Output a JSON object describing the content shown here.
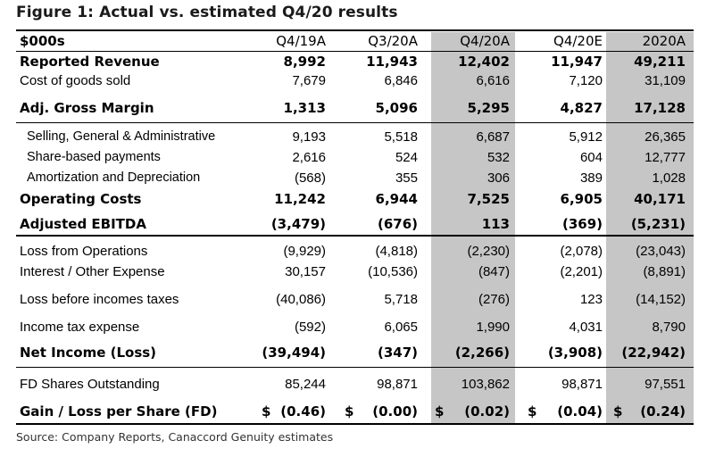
{
  "title": "Figure 1: Actual vs. estimated Q4/20 results",
  "header": {
    "label": "$000s",
    "cols": [
      "Q4/19A",
      "Q3/20A",
      "Q4/20A",
      "Q4/20E",
      "2020A"
    ]
  },
  "rows": [
    {
      "label": "Reported Revenue",
      "values": [
        "8,992",
        "11,943",
        "12,402",
        "11,947",
        "49,211"
      ]
    },
    {
      "label": "Cost of goods sold",
      "values": [
        "7,679",
        "6,846",
        "6,616",
        "7,120",
        "31,109"
      ]
    },
    {
      "label": "Adj. Gross Margin",
      "values": [
        "1,313",
        "5,096",
        "5,295",
        "4,827",
        "17,128"
      ]
    },
    {
      "label": "Selling, General & Administrative",
      "values": [
        "9,193",
        "5,518",
        "6,687",
        "5,912",
        "26,365"
      ]
    },
    {
      "label": "Share-based payments",
      "values": [
        "2,616",
        "524",
        "532",
        "604",
        "12,777"
      ]
    },
    {
      "label": "Amortization and Depreciation",
      "values": [
        "(568)",
        "355",
        "306",
        "389",
        "1,028"
      ]
    },
    {
      "label": "Operating Costs",
      "values": [
        "11,242",
        "6,944",
        "7,525",
        "6,905",
        "40,171"
      ]
    },
    {
      "label": "Adjusted EBITDA",
      "values": [
        "(3,479)",
        "(676)",
        "113",
        "(369)",
        "(5,231)"
      ]
    },
    {
      "label": "Loss from Operations",
      "values": [
        "(9,929)",
        "(4,818)",
        "(2,230)",
        "(2,078)",
        "(23,043)"
      ]
    },
    {
      "label": "Interest / Other Expense",
      "values": [
        "30,157",
        "(10,536)",
        "(847)",
        "(2,201)",
        "(8,891)"
      ]
    },
    {
      "label": "Loss before incomes taxes",
      "values": [
        "(40,086)",
        "5,718",
        "(276)",
        "123",
        "(14,152)"
      ]
    },
    {
      "label": "Income tax expense",
      "values": [
        "(592)",
        "6,065",
        "1,990",
        "4,031",
        "8,790"
      ]
    },
    {
      "label": "Net Income (Loss)",
      "values": [
        "(39,494)",
        "(347)",
        "(2,266)",
        "(3,908)",
        "(22,942)"
      ]
    },
    {
      "label": "FD Shares Outstanding",
      "values": [
        "85,244",
        "98,871",
        "103,862",
        "98,871",
        "97,551"
      ]
    },
    {
      "label": "Gain / Loss per Share (FD)",
      "currency": "$",
      "values": [
        "(0.46)",
        "(0.00)",
        "(0.02)",
        "(0.04)",
        "(0.24)"
      ]
    }
  ],
  "source": "Source: Company Reports, Canaccord Genuity estimates"
}
